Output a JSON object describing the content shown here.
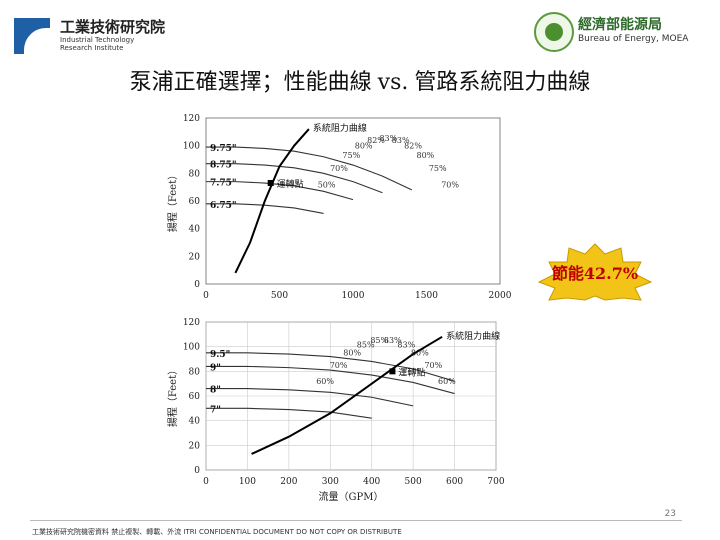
{
  "header": {
    "itri_name": "工業技術研究院",
    "itri_en": [
      "Industrial Technology",
      "Research Institute"
    ],
    "moea_name": "經濟部能源局",
    "moea_en": "Bureau of Energy, MOEA"
  },
  "title": {
    "left": "泵浦正確選擇；性能曲線",
    "vs": "vs.",
    "right": "管路系統阻力曲線"
  },
  "badge": {
    "text": "節能42.7%",
    "color": "#f2c418",
    "text_color": "#c00000"
  },
  "chart_data": [
    {
      "type": "line",
      "xlim": [
        0,
        2000
      ],
      "xticks": [
        0,
        500,
        1000,
        1500,
        2000
      ],
      "ylim": [
        0,
        120
      ],
      "yticks": [
        0,
        20,
        40,
        60,
        80,
        100,
        120
      ],
      "ylabel": "揚程（Feet）",
      "grid": false,
      "impeller_labels": [
        "9.75\"",
        "8.75\"",
        "7.75\"",
        "6.75\""
      ],
      "impeller_curves": [
        {
          "name": "9.75\"",
          "x": [
            0,
            200,
            400,
            600,
            800,
            1000,
            1200,
            1400
          ],
          "y": [
            99,
            99,
            98,
            96,
            92,
            86,
            78,
            68
          ]
        },
        {
          "name": "8.75\"",
          "x": [
            0,
            200,
            400,
            600,
            800,
            1000,
            1200
          ],
          "y": [
            87,
            87,
            86,
            84,
            80,
            74,
            66
          ]
        },
        {
          "name": "7.75\"",
          "x": [
            0,
            200,
            400,
            600,
            800,
            1000
          ],
          "y": [
            74,
            74,
            73,
            71,
            67,
            61
          ]
        },
        {
          "name": "6.75\"",
          "x": [
            0,
            200,
            400,
            600,
            800
          ],
          "y": [
            58,
            58,
            57,
            55,
            51
          ]
        }
      ],
      "system_curve": {
        "name": "系統阻力曲線",
        "x": [
          200,
          300,
          400,
          500,
          600,
          700
        ],
        "y": [
          8,
          30,
          60,
          85,
          100,
          112
        ]
      },
      "operating_point": {
        "label": "運轉點",
        "x": 440,
        "y": 73
      },
      "efficiency_labels": [
        "50%",
        "70%",
        "75%",
        "80%",
        "82%",
        "83%",
        "83%",
        "82%",
        "80%",
        "75%",
        "70%"
      ]
    },
    {
      "type": "line",
      "xlim": [
        0,
        700
      ],
      "xticks": [
        0,
        100,
        200,
        300,
        400,
        500,
        600,
        700
      ],
      "ylim": [
        0,
        120
      ],
      "yticks": [
        0,
        20,
        40,
        60,
        80,
        100,
        120
      ],
      "xlabel": "流量（GPM）",
      "ylabel": "揚程（Feet）",
      "grid": true,
      "impeller_labels": [
        "9.5\"",
        "9\"",
        "8\"",
        "7\""
      ],
      "impeller_curves": [
        {
          "name": "9.5\"",
          "x": [
            0,
            100,
            200,
            300,
            400,
            500,
            600
          ],
          "y": [
            95,
            95,
            94,
            92,
            88,
            82,
            72
          ]
        },
        {
          "name": "9\"",
          "x": [
            0,
            100,
            200,
            300,
            400,
            500,
            600
          ],
          "y": [
            84,
            84,
            83,
            81,
            77,
            71,
            62
          ]
        },
        {
          "name": "8\"",
          "x": [
            0,
            100,
            200,
            300,
            400,
            500
          ],
          "y": [
            66,
            66,
            65,
            63,
            59,
            52
          ]
        },
        {
          "name": "7\"",
          "x": [
            0,
            100,
            200,
            300,
            400
          ],
          "y": [
            50,
            50,
            49,
            47,
            42
          ]
        }
      ],
      "system_curve": {
        "name": "系統阻力曲線",
        "x": [
          110,
          200,
          300,
          400,
          500,
          570
        ],
        "y": [
          13,
          27,
          46,
          70,
          94,
          108
        ]
      },
      "operating_point": {
        "label": "運轉點",
        "x": 450,
        "y": 80
      },
      "efficiency_labels": [
        "60%",
        "70%",
        "80%",
        "85%",
        "85%",
        "83%",
        "83%",
        "80%",
        "70%",
        "60%"
      ]
    }
  ],
  "footer": {
    "text": "工業技術研究院機密資料 禁止複製、轉載、外流 ITRI CONFIDENTIAL DOCUMENT DO NOT COPY OR DISTRIBUTE",
    "page": "23"
  }
}
